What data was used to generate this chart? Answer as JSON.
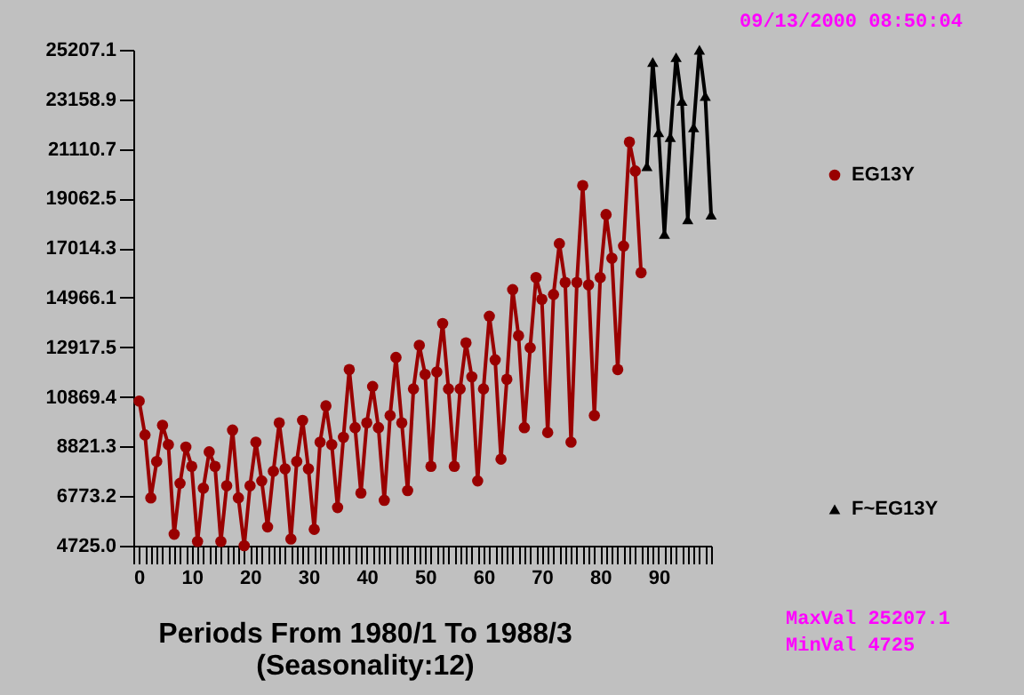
{
  "chart_data": {
    "type": "line",
    "xlabel": "Periods From 1980/1 To 1988/3\n(Seasonality:12)",
    "annotations": [
      "09/13/2000 08:50:04",
      "MaxVal 25207.1",
      "MinVal 4725"
    ],
    "xlim": [
      0,
      99
    ],
    "xticks": [
      0,
      {
        "value": 1,
        "label": null
      },
      {
        "value": 2,
        "label": null
      },
      {
        "value": 3,
        "label": null
      },
      {
        "value": 4,
        "label": null
      },
      {
        "value": 5,
        "label": null
      },
      {
        "value": 6,
        "label": null
      },
      {
        "value": 7,
        "label": null
      },
      {
        "value": 8,
        "label": null
      },
      {
        "value": 9,
        "label": null
      },
      10,
      {
        "value": 11,
        "label": null
      },
      {
        "value": 12,
        "label": null
      },
      {
        "value": 13,
        "label": null
      },
      {
        "value": 14,
        "label": null
      },
      {
        "value": 15,
        "label": null
      },
      {
        "value": 16,
        "label": null
      },
      {
        "value": 17,
        "label": null
      },
      {
        "value": 18,
        "label": null
      },
      {
        "value": 19,
        "label": null
      },
      20,
      {
        "value": 21,
        "label": null
      },
      {
        "value": 22,
        "label": null
      },
      {
        "value": 23,
        "label": null
      },
      {
        "value": 24,
        "label": null
      },
      {
        "value": 25,
        "label": null
      },
      {
        "value": 26,
        "label": null
      },
      {
        "value": 27,
        "label": null
      },
      {
        "value": 28,
        "label": null
      },
      {
        "value": 29,
        "label": null
      },
      30,
      {
        "value": 31,
        "label": null
      },
      {
        "value": 32,
        "label": null
      },
      {
        "value": 33,
        "label": null
      },
      {
        "value": 34,
        "label": null
      },
      {
        "value": 35,
        "label": null
      },
      {
        "value": 36,
        "label": null
      },
      {
        "value": 37,
        "label": null
      },
      {
        "value": 38,
        "label": null
      },
      {
        "value": 39,
        "label": null
      },
      40,
      {
        "value": 41,
        "label": null
      },
      {
        "value": 42,
        "label": null
      },
      {
        "value": 43,
        "label": null
      },
      {
        "value": 44,
        "label": null
      },
      {
        "value": 45,
        "label": null
      },
      {
        "value": 46,
        "label": null
      },
      {
        "value": 47,
        "label": null
      },
      {
        "value": 48,
        "label": null
      },
      {
        "value": 49,
        "label": null
      },
      50,
      {
        "value": 51,
        "label": null
      },
      {
        "value": 52,
        "label": null
      },
      {
        "value": 53,
        "label": null
      },
      {
        "value": 54,
        "label": null
      },
      {
        "value": 55,
        "label": null
      },
      {
        "value": 56,
        "label": null
      },
      {
        "value": 57,
        "label": null
      },
      {
        "value": 58,
        "label": null
      },
      {
        "value": 59,
        "label": null
      },
      60,
      {
        "value": 61,
        "label": null
      },
      {
        "value": 62,
        "label": null
      },
      {
        "value": 63,
        "label": null
      },
      {
        "value": 64,
        "label": null
      },
      {
        "value": 65,
        "label": null
      },
      {
        "value": 66,
        "label": null
      },
      {
        "value": 67,
        "label": null
      },
      {
        "value": 68,
        "label": null
      },
      {
        "value": 69,
        "label": null
      },
      70,
      {
        "value": 71,
        "label": null
      },
      {
        "value": 72,
        "label": null
      },
      {
        "value": 73,
        "label": null
      },
      {
        "value": 74,
        "label": null
      },
      {
        "value": 75,
        "label": null
      },
      {
        "value": 76,
        "label": null
      },
      {
        "value": 77,
        "label": null
      },
      {
        "value": 78,
        "label": null
      },
      {
        "value": 79,
        "label": null
      },
      80,
      {
        "value": 81,
        "label": null
      },
      {
        "value": 82,
        "label": null
      },
      {
        "value": 83,
        "label": null
      },
      {
        "value": 84,
        "label": null
      },
      {
        "value": 85,
        "label": null
      },
      {
        "value": 86,
        "label": null
      },
      {
        "value": 87,
        "label": null
      },
      {
        "value": 88,
        "label": null
      },
      {
        "value": 89,
        "label": null
      },
      90,
      {
        "value": 91,
        "label": null
      },
      {
        "value": 92,
        "label": null
      },
      {
        "value": 93,
        "label": null
      },
      {
        "value": 94,
        "label": null
      },
      {
        "value": 95,
        "label": null
      },
      {
        "value": 96,
        "label": null
      },
      {
        "value": 97,
        "label": null
      },
      {
        "value": 98,
        "label": null
      },
      {
        "value": 99,
        "label": null
      }
    ],
    "ylim": [
      4725,
      25207.1
    ],
    "yticks": [
      {
        "value": 4725,
        "label": "4725.0"
      },
      6773.2,
      8821.3,
      10869.4,
      12917.5,
      14966.1,
      17014.3,
      19062.5,
      21110.7,
      23158.9,
      25207.1
    ],
    "legend": "right",
    "series": [
      {
        "name": "EG13Y",
        "color": "#990000",
        "marker": "circle",
        "x": [
          1,
          2,
          3,
          4,
          5,
          6,
          7,
          8,
          9,
          10,
          11,
          12,
          13,
          14,
          15,
          16,
          17,
          18,
          19,
          20,
          21,
          22,
          23,
          24,
          25,
          26,
          27,
          28,
          29,
          30,
          31,
          32,
          33,
          34,
          35,
          36,
          37,
          38,
          39,
          40,
          41,
          42,
          43,
          44,
          45,
          46,
          47,
          48,
          49,
          50,
          51,
          52,
          53,
          54,
          55,
          56,
          57,
          58,
          59,
          60,
          61,
          62,
          63,
          64,
          65,
          66,
          67,
          68,
          69,
          70,
          71,
          72,
          73,
          74,
          75,
          76,
          77,
          78,
          79,
          80,
          81,
          82,
          83,
          84,
          85,
          86,
          87
        ],
        "values": [
          10700,
          9300,
          6700,
          8200,
          9700,
          8900,
          5200,
          7300,
          8800,
          8000,
          4900,
          7100,
          8600,
          8000,
          4900,
          7200,
          9500,
          6700,
          4725,
          7200,
          9000,
          7400,
          5500,
          7800,
          9800,
          7900,
          5000,
          8200,
          9900,
          7900,
          5400,
          9000,
          10500,
          8900,
          6300,
          9200,
          12000,
          9600,
          6900,
          9800,
          11300,
          9600,
          6600,
          10100,
          12500,
          9800,
          7000,
          11200,
          13000,
          11800,
          8000,
          11900,
          13900,
          11200,
          8000,
          11200,
          13100,
          11700,
          7400,
          11200,
          14200,
          12400,
          8300,
          11600,
          15300,
          13400,
          9600,
          12900,
          15800,
          14900,
          9400,
          15100,
          17200,
          15600,
          9000,
          15600,
          19600,
          15500,
          10100,
          15800,
          18400,
          16600,
          12000,
          17100,
          21400,
          20200,
          16000
        ]
      },
      {
        "name": "F~EG13Y",
        "color": "#000000",
        "marker": "triangle",
        "x": [
          88,
          89,
          90,
          91,
          92,
          93,
          94,
          95,
          96,
          97,
          98,
          99
        ],
        "values": [
          20400,
          24700,
          21800,
          17600,
          21600,
          24900,
          23100,
          18200,
          22000,
          25207.1,
          23300,
          18400
        ]
      }
    ]
  }
}
